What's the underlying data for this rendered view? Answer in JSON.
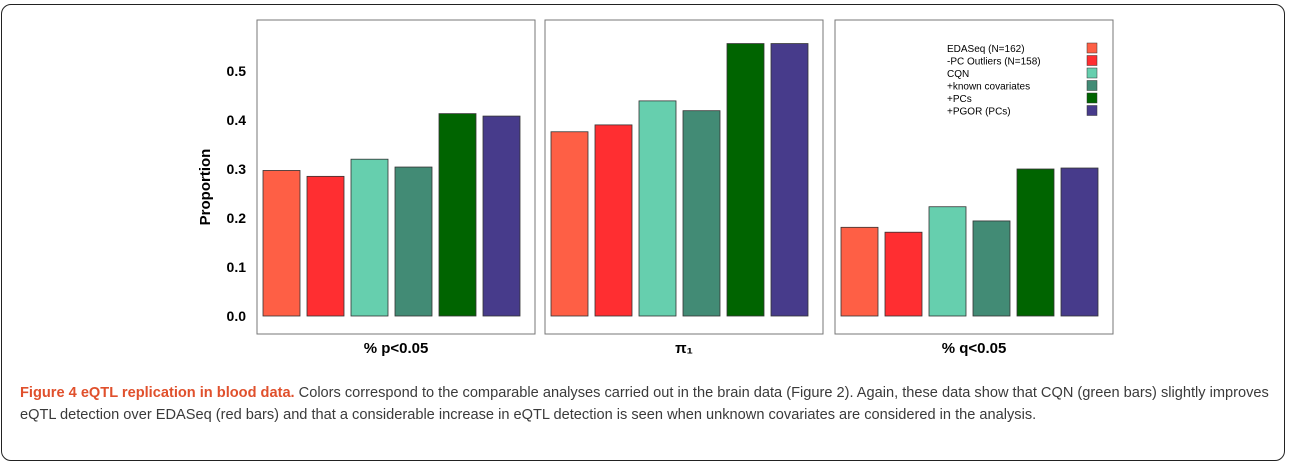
{
  "chart_data": {
    "type": "bar",
    "ylabel": "Proportion",
    "ylim": [
      0,
      0.6
    ],
    "y_ticks": [
      "0.0",
      "0.1",
      "0.2",
      "0.3",
      "0.4",
      "0.5"
    ],
    "panels": [
      {
        "label": "% p<0.05",
        "values": [
          0.297,
          0.285,
          0.32,
          0.304,
          0.413,
          0.408
        ]
      },
      {
        "label": "π₁",
        "values": [
          0.376,
          0.39,
          0.439,
          0.419,
          0.556,
          0.556
        ]
      },
      {
        "label": "% q<0.05",
        "values": [
          0.181,
          0.171,
          0.223,
          0.194,
          0.3,
          0.302
        ]
      }
    ],
    "series": [
      {
        "name": "EDASeq (N=162)",
        "color": "#fe5f45"
      },
      {
        "name": "-PC Outliers  (N=158)",
        "color": "#ff2e31"
      },
      {
        "name": "CQN",
        "color": "#66cfae"
      },
      {
        "name": "+known covariates",
        "color": "#428b75"
      },
      {
        "name": "+PCs",
        "color": "#006400"
      },
      {
        "name": "+PGOR (PCs)",
        "color": "#473b8b"
      }
    ],
    "legend_position": "top-right"
  },
  "caption": {
    "label": "Figure 4 eQTL replication in blood data.",
    "text": " Colors correspond to the comparable analyses carried out in the brain data (Figure 2). Again, these data show that CQN (green bars) slightly improves eQTL detection over EDASeq (red bars) and that a considerable increase in eQTL detection is seen when unknown covariates are considered in the analysis."
  }
}
